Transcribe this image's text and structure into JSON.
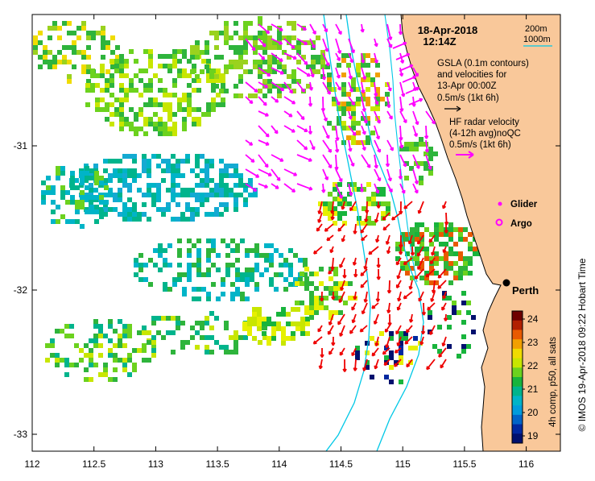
{
  "map": {
    "date": "18-Apr-2018",
    "time": "12:14Z",
    "bathymetry": {
      "contour_200": "200m",
      "contour_1000": "1000m"
    },
    "gsla": {
      "line1": "GSLA (0.1m contours)",
      "line2": "and velocities for",
      "line3": "13-Apr 00:00Z",
      "scale": "0.5m/s (1kt 6h)"
    },
    "hf_radar": {
      "line1": "HF radar velocity",
      "line2": "(4-12h avg)noQC",
      "scale": "0.5m/s (1kt 6h)"
    },
    "legend": {
      "glider": "Glider",
      "argo": "Argo"
    },
    "place": {
      "city": "Perth"
    },
    "colorbar": {
      "label": "4h comp, p50, all sats",
      "ticks": [
        "24",
        "23",
        "22",
        "21",
        "20",
        "19"
      ]
    },
    "axes": {
      "x_ticks": [
        "112",
        "112.5",
        "113",
        "113.5",
        "114",
        "114.5",
        "115",
        "115.5",
        "116"
      ],
      "y_ticks": [
        "-31",
        "-32",
        "-33"
      ]
    },
    "credit": "© IMOS 19-Apr-2018 09:22 Hobart Time",
    "colors": {
      "land": "#f9c89a",
      "hf_arrow": "#ff00ff",
      "gsla_arrow": "#ee0000",
      "contour": "#00c8e6",
      "glider": "#ff00ff",
      "argo": "#ff00ff"
    }
  }
}
